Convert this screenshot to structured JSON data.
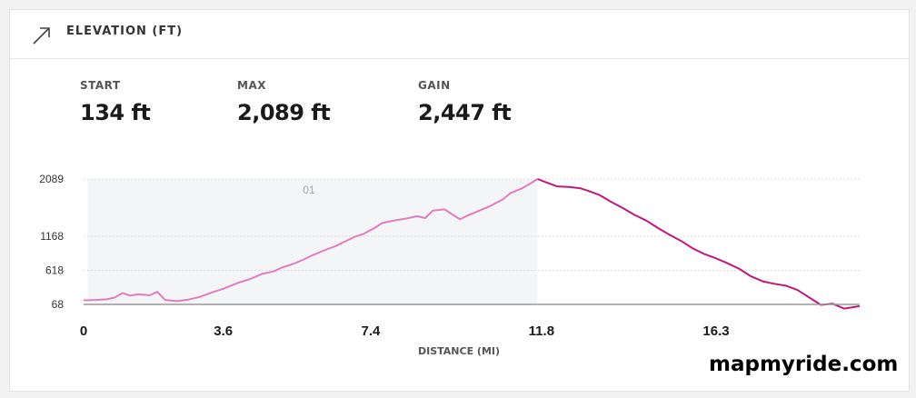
{
  "header": {
    "title": "ELEVATION (FT)",
    "icon": "trend-arrow-icon"
  },
  "stats": [
    {
      "label": "START",
      "value": "134 ft"
    },
    {
      "label": "MAX",
      "value": "2,089 ft"
    },
    {
      "label": "GAIN",
      "value": "2,447 ft"
    }
  ],
  "chart_data": {
    "type": "line",
    "xlabel": "DISTANCE (MI)",
    "ylabel": "",
    "xlim": [
      0,
      20
    ],
    "ylim": [
      68,
      2089
    ],
    "x_ticks": [
      "0",
      "3.6",
      "7.4",
      "11.8",
      "16.3"
    ],
    "x_tick_values": [
      0,
      3.6,
      7.4,
      11.8,
      16.3
    ],
    "y_ticks": [
      "2089",
      "1168",
      "618",
      "68"
    ],
    "y_tick_values": [
      2089,
      1168,
      618,
      68
    ],
    "grid": "horizontal-dotted",
    "segment": {
      "label": "01",
      "x_start": 0.1,
      "x_end": 11.7
    },
    "series": [
      {
        "color_climb": "#e07dc0",
        "color_descent": "#c0187e",
        "points": [
          [
            0.0,
            134
          ],
          [
            0.3,
            140
          ],
          [
            0.6,
            150
          ],
          [
            0.8,
            180
          ],
          [
            1.0,
            250
          ],
          [
            1.2,
            210
          ],
          [
            1.4,
            230
          ],
          [
            1.7,
            215
          ],
          [
            1.9,
            270
          ],
          [
            2.1,
            140
          ],
          [
            2.4,
            120
          ],
          [
            2.7,
            145
          ],
          [
            3.0,
            190
          ],
          [
            3.3,
            260
          ],
          [
            3.6,
            320
          ],
          [
            4.0,
            420
          ],
          [
            4.3,
            480
          ],
          [
            4.6,
            560
          ],
          [
            4.9,
            600
          ],
          [
            5.1,
            660
          ],
          [
            5.4,
            720
          ],
          [
            5.7,
            800
          ],
          [
            5.9,
            860
          ],
          [
            6.2,
            940
          ],
          [
            6.5,
            1010
          ],
          [
            6.8,
            1100
          ],
          [
            7.0,
            1160
          ],
          [
            7.2,
            1200
          ],
          [
            7.5,
            1300
          ],
          [
            7.7,
            1380
          ],
          [
            8.0,
            1420
          ],
          [
            8.3,
            1450
          ],
          [
            8.6,
            1490
          ],
          [
            8.8,
            1460
          ],
          [
            9.0,
            1580
          ],
          [
            9.3,
            1600
          ],
          [
            9.5,
            1520
          ],
          [
            9.7,
            1440
          ],
          [
            9.9,
            1500
          ],
          [
            10.2,
            1580
          ],
          [
            10.5,
            1660
          ],
          [
            10.8,
            1760
          ],
          [
            11.0,
            1860
          ],
          [
            11.3,
            1940
          ],
          [
            11.5,
            2010
          ],
          [
            11.7,
            2089
          ],
          [
            11.9,
            2040
          ],
          [
            12.2,
            1970
          ],
          [
            12.5,
            1960
          ],
          [
            12.8,
            1940
          ],
          [
            13.0,
            1900
          ],
          [
            13.3,
            1830
          ],
          [
            13.6,
            1720
          ],
          [
            13.9,
            1620
          ],
          [
            14.2,
            1510
          ],
          [
            14.5,
            1420
          ],
          [
            14.8,
            1300
          ],
          [
            15.1,
            1190
          ],
          [
            15.4,
            1090
          ],
          [
            15.7,
            970
          ],
          [
            16.0,
            880
          ],
          [
            16.3,
            810
          ],
          [
            16.6,
            730
          ],
          [
            16.9,
            640
          ],
          [
            17.2,
            520
          ],
          [
            17.5,
            440
          ],
          [
            17.8,
            400
          ],
          [
            18.1,
            370
          ],
          [
            18.4,
            300
          ],
          [
            18.7,
            180
          ],
          [
            19.0,
            60
          ],
          [
            19.3,
            80
          ],
          [
            19.6,
            0
          ],
          [
            19.8,
            20
          ],
          [
            20.0,
            40
          ]
        ]
      }
    ]
  },
  "brand": {
    "text": "mapmyride.com"
  },
  "colors": {
    "climb": "#e07dc0",
    "descent": "#c0187e",
    "segment_fill": "#f4f5f7",
    "axis": "#999999",
    "grid": "#dddddd"
  }
}
